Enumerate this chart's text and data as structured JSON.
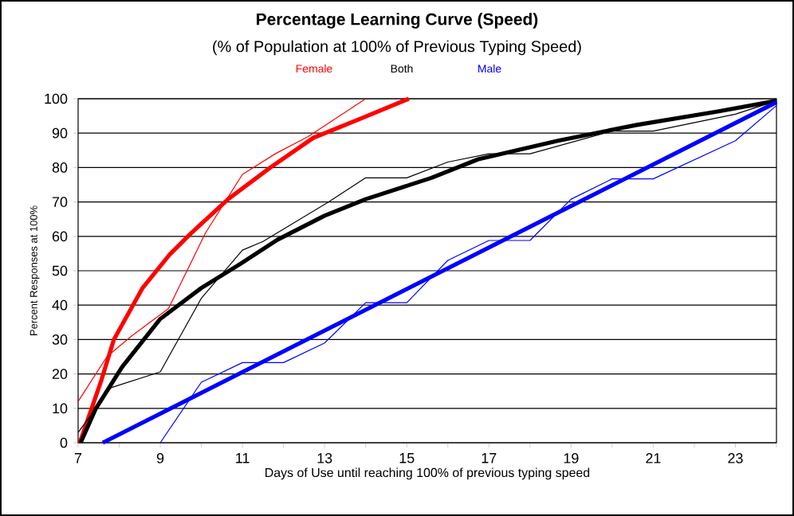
{
  "chart_data": {
    "type": "line",
    "title": "Percentage Learning Curve (Speed)",
    "subtitle": "(% of Population at 100% of Previous Typing Speed)",
    "xlabel": "Days of Use until reaching 100% of previous typing speed",
    "ylabel": "Percent Responses at 100%",
    "xlim": [
      7,
      24
    ],
    "ylim": [
      0,
      100
    ],
    "xticks": [
      7,
      {
        "value": 8,
        "label": null
      },
      9,
      {
        "value": 10,
        "label": null
      },
      11,
      {
        "value": 12,
        "label": null
      },
      13,
      {
        "value": 14,
        "label": null
      },
      15,
      {
        "value": 16,
        "label": null
      },
      17,
      {
        "value": 18,
        "label": null
      },
      19,
      {
        "value": 20,
        "label": null
      },
      21,
      {
        "value": 22,
        "label": null
      },
      23,
      {
        "value": 24,
        "label": null
      }
    ],
    "yticks": [
      0,
      10,
      20,
      30,
      40,
      50,
      60,
      70,
      80,
      90,
      100
    ],
    "grid": "y",
    "marker": "none",
    "line_style": "solid",
    "series": [
      {
        "name": "Female",
        "color": "#ff0000",
        "x": [
          7,
          7.7,
          8.3,
          9.2,
          10.1,
          11,
          11.8,
          12.6,
          14
        ],
        "values": [
          12,
          25,
          31,
          39,
          61,
          78,
          84,
          89,
          100
        ]
      },
      {
        "color": "#ff0000",
        "x": [
          7.04,
          7.55,
          7.87,
          8.57,
          9.22,
          9.74,
          10.65,
          11.68,
          12.72,
          14,
          15.05
        ],
        "values": [
          0,
          17.6,
          30,
          45,
          54.6,
          60.8,
          70.8,
          80,
          88.6,
          94.8,
          100
        ]
      },
      {
        "name": "Both",
        "color": "#000000",
        "x": [
          7,
          7.8,
          9,
          10,
          11,
          11.5,
          13.1,
          14,
          15,
          16,
          17,
          18,
          20,
          21,
          23,
          24
        ],
        "values": [
          3,
          16,
          20.6,
          42,
          56,
          58.5,
          70,
          77,
          77,
          81.6,
          84,
          84,
          90.6,
          90.6,
          95.5,
          99.4
        ]
      },
      {
        "color": "#000000",
        "x": [
          7.06,
          7.43,
          8.07,
          9,
          10,
          10.95,
          11.85,
          13,
          14,
          15.6,
          16.74,
          18.68,
          20.6,
          22.57,
          24
        ],
        "values": [
          0,
          9.9,
          22,
          36,
          45,
          52,
          59,
          66,
          70.8,
          77,
          82.4,
          87.8,
          92.4,
          96.3,
          99.4
        ]
      },
      {
        "name": "Male",
        "color": "#0000ff",
        "x": [
          9,
          10,
          11,
          12,
          13,
          14,
          15,
          16,
          17,
          18,
          19,
          20,
          21,
          23,
          24
        ],
        "values": [
          0,
          17.6,
          23.3,
          23.3,
          29,
          40.7,
          40.7,
          53,
          58.8,
          58.8,
          70.8,
          76.7,
          76.7,
          87.8,
          98
        ]
      },
      {
        "color": "#0000ff",
        "x": [
          7.6,
          24
        ],
        "values": [
          0,
          99
        ]
      }
    ]
  }
}
